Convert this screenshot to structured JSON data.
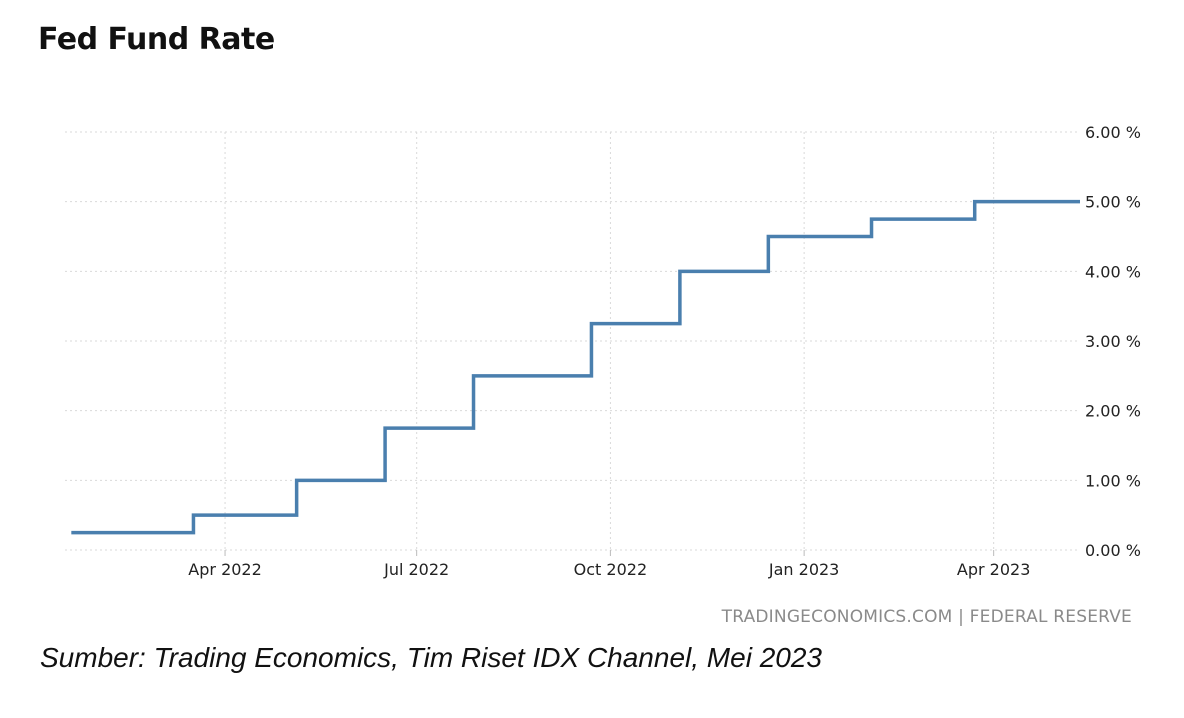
{
  "header": {
    "title": "Fed Fund Rate"
  },
  "footer": {
    "source": "TRADINGECONOMICS.COM | FEDERAL RESERVE",
    "caption": "Sumber: Trading Economics, Tim Riset IDX Channel, Mei 2023"
  },
  "colors": {
    "line": "#4a7fae",
    "grid": "#d9d9d9",
    "text": "#222222",
    "source": "#8a8a8a"
  },
  "chart_data": {
    "type": "line",
    "step": true,
    "title": "Fed Fund Rate",
    "xlabel": "",
    "ylabel": "",
    "ylim": [
      0,
      6
    ],
    "xlim": [
      "2022-01-15",
      "2023-05-12"
    ],
    "y_ticks": [
      {
        "value": 0,
        "label": "0.00 %"
      },
      {
        "value": 1,
        "label": "1.00 %"
      },
      {
        "value": 2,
        "label": "2.00 %"
      },
      {
        "value": 3,
        "label": "3.00 %"
      },
      {
        "value": 4,
        "label": "4.00 %"
      },
      {
        "value": 5,
        "label": "5.00 %"
      },
      {
        "value": 6,
        "label": "6.00 %"
      }
    ],
    "x_ticks": [
      {
        "date": "2022-04-01",
        "label": "Apr 2022"
      },
      {
        "date": "2022-07-01",
        "label": "Jul 2022"
      },
      {
        "date": "2022-10-01",
        "label": "Oct 2022"
      },
      {
        "date": "2023-01-01",
        "label": "Jan 2023"
      },
      {
        "date": "2023-04-01",
        "label": "Apr 2023"
      }
    ],
    "grid": true,
    "y_axis_side": "right",
    "series": [
      {
        "points": [
          {
            "x": "2022-01-18",
            "y": 0.25
          },
          {
            "x": "2022-03-17",
            "y": 0.5
          },
          {
            "x": "2022-05-05",
            "y": 1.0
          },
          {
            "x": "2022-06-16",
            "y": 1.75
          },
          {
            "x": "2022-07-28",
            "y": 2.5
          },
          {
            "x": "2022-09-22",
            "y": 3.25
          },
          {
            "x": "2022-11-03",
            "y": 4.0
          },
          {
            "x": "2022-12-15",
            "y": 4.5
          },
          {
            "x": "2023-02-02",
            "y": 4.75
          },
          {
            "x": "2023-03-23",
            "y": 5.0
          },
          {
            "x": "2023-05-12",
            "y": 5.0
          }
        ]
      }
    ]
  }
}
